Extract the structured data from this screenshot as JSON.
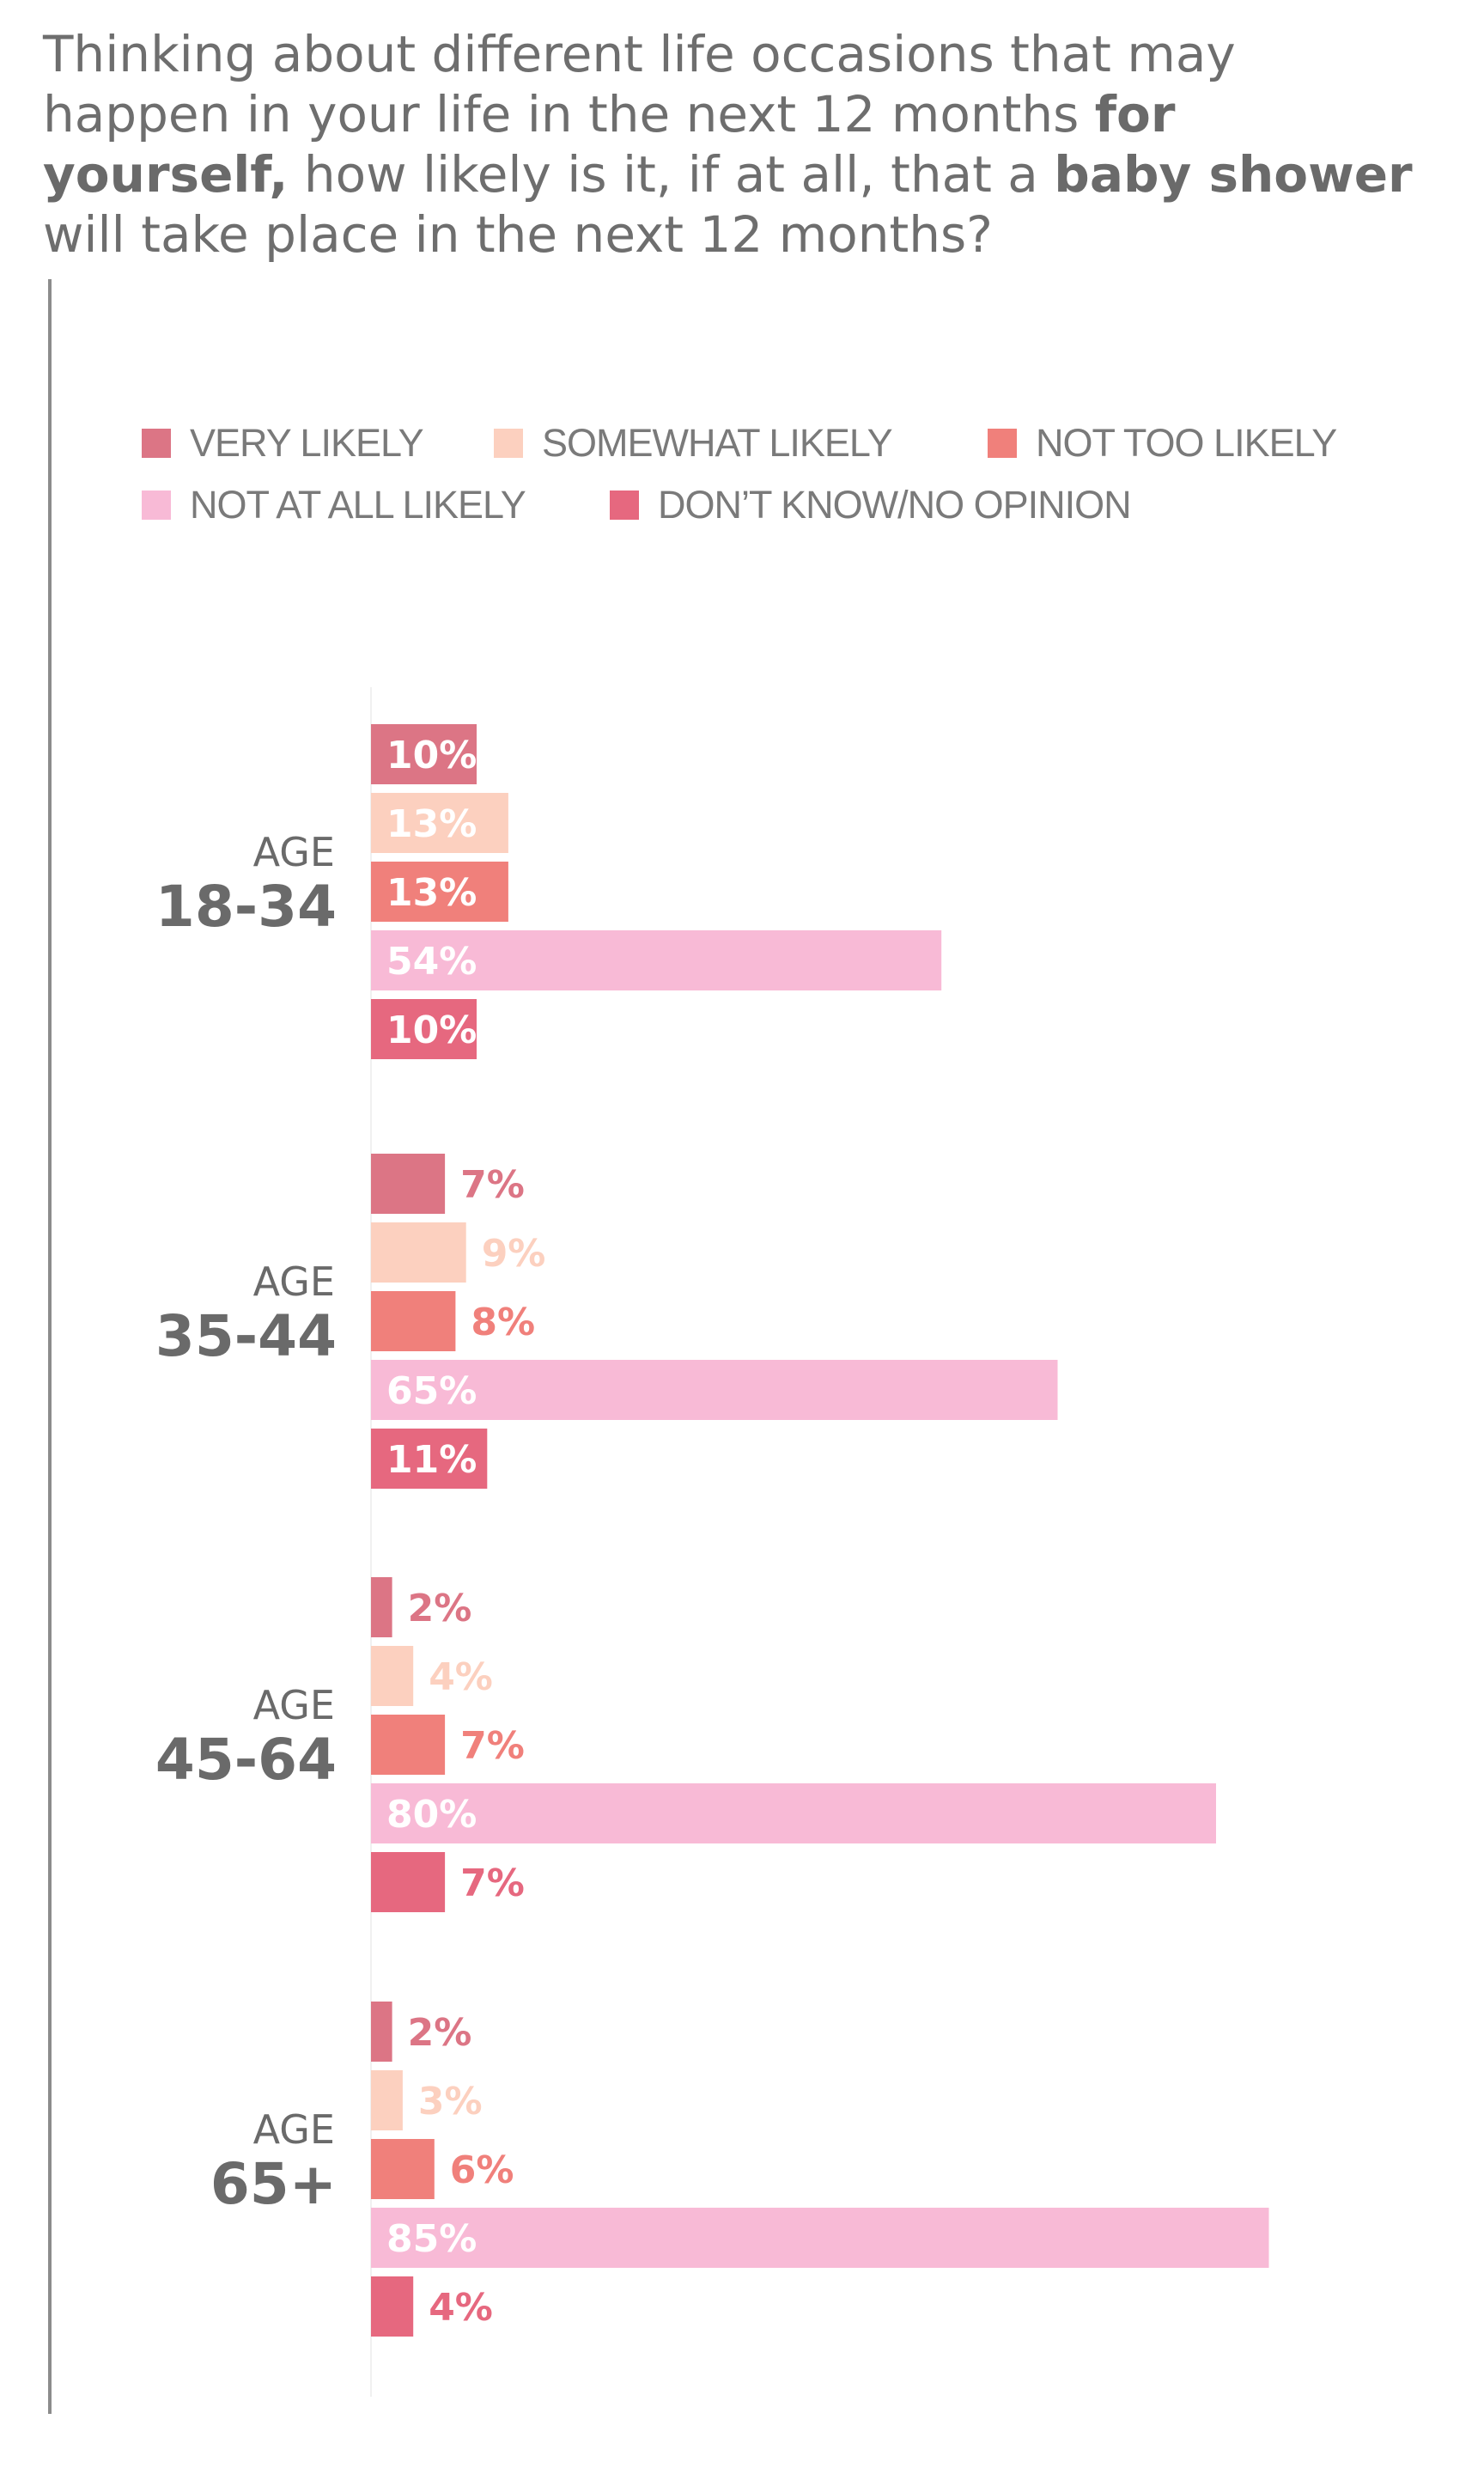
{
  "question": {
    "segments": [
      {
        "text": "Thinking about different life occasions that may happen in your life in the next 12 months ",
        "bold": false
      },
      {
        "text": "for yourself,",
        "bold": true
      },
      {
        "text": " how likely is it, if at all, that a ",
        "bold": false
      },
      {
        "text": "baby shower",
        "bold": true
      },
      {
        "text": " will take place in the next 12 months?",
        "bold": false
      }
    ]
  },
  "colors": {
    "very_likely": "#dc7585",
    "somewhat_likely": "#fcd0bf",
    "not_too_likely": "#f0807b",
    "not_at_all_likely": "#f8bad6",
    "dont_know": "#e6687f",
    "group_label": "#6a6a6a"
  },
  "legend": [
    {
      "label": "VERY LIKELY",
      "color": "#dc7585"
    },
    {
      "label": "SOMEWHAT LIKELY",
      "color": "#fcd0bf"
    },
    {
      "label": "NOT TOO LIKELY",
      "color": "#f0807b"
    },
    {
      "label": "NOT AT ALL LIKELY",
      "color": "#f8bad6"
    },
    {
      "label": "DON’T KNOW/NO OPINION",
      "color": "#e6687f"
    }
  ],
  "chart_data": {
    "type": "bar",
    "orientation": "horizontal",
    "categories": [
      "AGE 18-34",
      "AGE 35-44",
      "AGE 45-64",
      "AGE 65+"
    ],
    "category_labels": [
      {
        "top": "AGE",
        "bottom": "18-34"
      },
      {
        "top": "AGE",
        "bottom": "35-44"
      },
      {
        "top": "AGE",
        "bottom": "45-64"
      },
      {
        "top": "AGE",
        "bottom": "65+"
      }
    ],
    "series": [
      {
        "name": "VERY LIKELY",
        "color": "#dc7585",
        "values": [
          10,
          7,
          2,
          2
        ],
        "labels": [
          "10%",
          "7%",
          "2%",
          "2%"
        ]
      },
      {
        "name": "SOMEWHAT LIKELY",
        "color": "#fcd0bf",
        "values": [
          13,
          9,
          4,
          3
        ],
        "labels": [
          "13%",
          "9%",
          "4%",
          "3%"
        ]
      },
      {
        "name": "NOT TOO LIKELY",
        "color": "#f0807b",
        "values": [
          13,
          8,
          7,
          6
        ],
        "labels": [
          "13%",
          "8%",
          "7%",
          "6%"
        ]
      },
      {
        "name": "NOT AT ALL LIKELY",
        "color": "#f8bad6",
        "values": [
          54,
          65,
          80,
          85
        ],
        "labels": [
          "54%",
          "65%",
          "80%",
          "85%"
        ]
      },
      {
        "name": "DON’T KNOW/NO OPINION",
        "color": "#e6687f",
        "values": [
          10,
          11,
          7,
          4
        ],
        "labels": [
          "10%",
          "11%",
          "7%",
          "4%"
        ]
      }
    ],
    "unit": "%",
    "xlim": [
      0,
      100
    ],
    "grid": false,
    "legend_position": "top"
  }
}
